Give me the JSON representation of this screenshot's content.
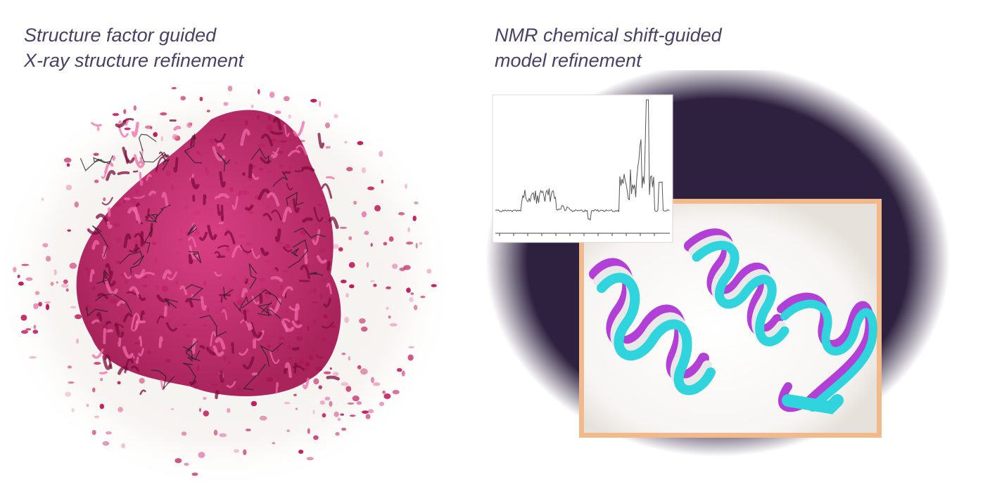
{
  "left_panel": {
    "caption_line1": "Structure factor guided",
    "caption_line2": "X-ray structure refinement",
    "colors": {
      "density": "#c2185b",
      "density_light": "#e889b4",
      "backbone": "#222222"
    }
  },
  "right_panel": {
    "caption_line1": "NMR chemical shift-guided",
    "caption_line2": "model refinement",
    "colors": {
      "halo": "#2e2140",
      "frame": "#f0b98a",
      "helix_a": "#2fd4dc",
      "helix_b": "#b23fd6",
      "helix_c": "#e8e8e8"
    }
  }
}
